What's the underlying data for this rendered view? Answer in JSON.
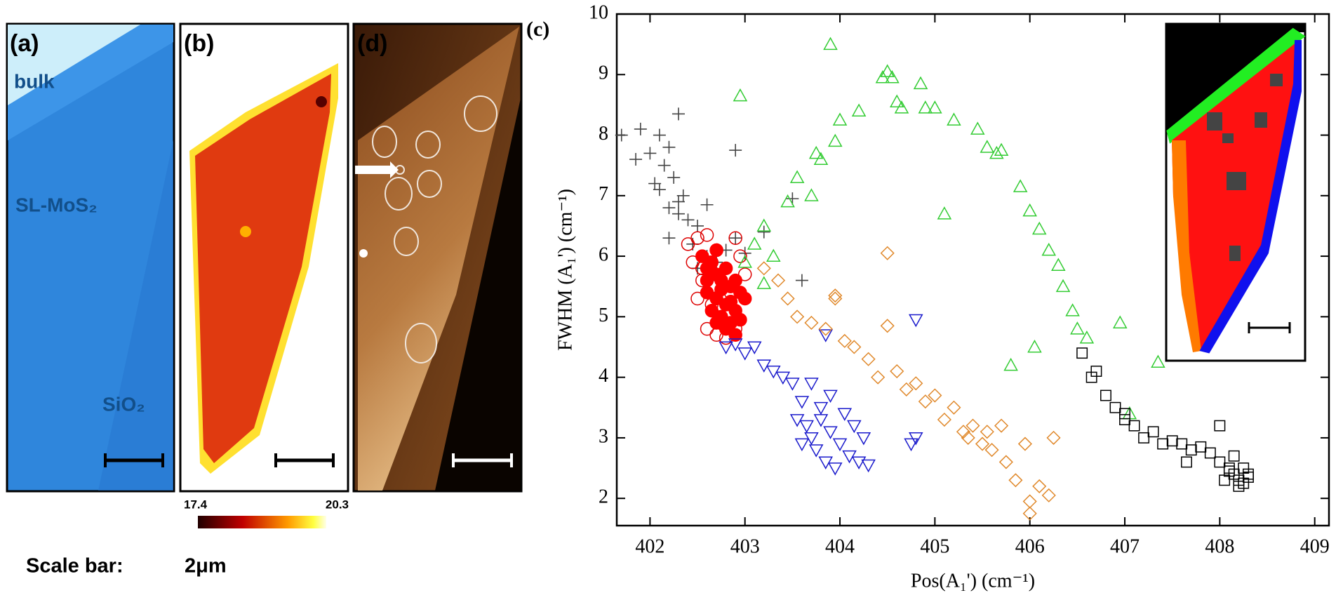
{
  "panels": {
    "a": {
      "label": "(a)",
      "bulk": "bulk",
      "monolayer": "SL-MoS₂",
      "substrate": "SiO₂"
    },
    "b": {
      "label": "(b)"
    },
    "colorbar": {
      "min": "17.4",
      "max": "20.3"
    },
    "d": {
      "label": "(d)"
    },
    "c": {
      "label": "(c)"
    },
    "scale_bar": {
      "label": "Scale bar:",
      "length": "2μm"
    }
  },
  "chart_data": {
    "type": "scatter",
    "x_label": "Pos(A₁') (cm⁻¹)",
    "y_label": "FWHM (A₁') (cm⁻¹)",
    "xlim": [
      401.65,
      409.15
    ],
    "ylim": [
      1.55,
      10
    ],
    "xticks": [
      402,
      403,
      404,
      405,
      406,
      407,
      408,
      409
    ],
    "yticks": [
      2,
      3,
      4,
      5,
      6,
      7,
      8,
      9,
      10
    ],
    "series": [
      {
        "color": "#444444",
        "marker": "plus",
        "x": [
          401.7,
          401.85,
          401.9,
          402.0,
          402.05,
          402.1,
          402.15,
          402.2,
          402.25,
          402.3,
          402.35,
          402.1,
          402.2,
          402.3,
          402.4,
          402.5,
          402.2,
          402.3,
          402.45,
          402.6,
          402.7,
          402.8,
          402.9,
          403.0,
          403.2,
          403.5,
          403.6,
          402.9,
          402.6,
          402.5
        ],
        "values": [
          8.0,
          7.6,
          8.1,
          7.7,
          7.2,
          8.0,
          7.5,
          7.8,
          7.3,
          8.35,
          7.0,
          7.1,
          6.8,
          6.9,
          6.6,
          6.5,
          6.3,
          6.7,
          6.2,
          6.0,
          5.9,
          6.1,
          6.3,
          6.05,
          6.4,
          6.95,
          5.6,
          7.75,
          6.85,
          5.8
        ]
      },
      {
        "color": "#dd0000",
        "marker": "circle",
        "x": [
          402.4,
          402.45,
          402.5,
          402.55,
          402.6,
          402.65,
          402.7,
          402.75,
          402.8,
          402.85,
          402.9,
          402.95,
          403.0,
          402.5,
          402.6,
          402.7,
          402.8,
          402.9,
          402.55,
          402.65
        ],
        "values": [
          6.2,
          5.9,
          6.3,
          5.6,
          6.35,
          5.2,
          6.1,
          5.0,
          4.9,
          5.4,
          6.3,
          6.0,
          5.7,
          5.3,
          4.8,
          4.7,
          4.65,
          4.8,
          5.8,
          5.5
        ]
      },
      {
        "color": "#ff0000",
        "marker": "filled-circle",
        "x": [
          402.55,
          402.6,
          402.65,
          402.7,
          402.75,
          402.8,
          402.85,
          402.9,
          402.95,
          402.6,
          402.7,
          402.8,
          402.9,
          403.0,
          402.65,
          402.75,
          402.85,
          402.95,
          402.7,
          402.8,
          402.9,
          402.75,
          402.85,
          402.6,
          402.7
        ],
        "values": [
          6.0,
          5.8,
          5.9,
          5.7,
          5.6,
          5.8,
          5.5,
          5.6,
          5.4,
          5.4,
          5.3,
          5.2,
          5.1,
          5.3,
          5.1,
          5.0,
          4.9,
          4.95,
          4.9,
          4.8,
          4.7,
          5.45,
          5.25,
          5.6,
          6.1
        ]
      },
      {
        "color": "#33cc33",
        "marker": "triangle-up",
        "x": [
          402.95,
          403.1,
          403.2,
          403.3,
          403.45,
          403.55,
          403.7,
          403.75,
          403.8,
          403.9,
          403.95,
          404.0,
          404.2,
          404.45,
          404.5,
          404.55,
          404.6,
          404.65,
          404.85,
          404.9,
          405.0,
          405.2,
          405.45,
          405.55,
          405.65,
          405.7,
          405.9,
          406.0,
          406.1,
          406.2,
          406.3,
          406.35,
          406.45,
          406.5,
          406.6,
          403.0,
          403.2,
          405.1,
          405.8,
          406.05,
          407.35,
          406.95,
          407.05
        ],
        "values": [
          8.65,
          6.2,
          6.5,
          6.0,
          6.9,
          7.3,
          7.0,
          7.7,
          7.6,
          9.5,
          7.9,
          8.25,
          8.4,
          8.95,
          9.05,
          8.95,
          8.55,
          8.45,
          8.85,
          8.45,
          8.45,
          8.25,
          8.1,
          7.8,
          7.7,
          7.75,
          7.15,
          6.75,
          6.45,
          6.1,
          5.85,
          5.5,
          5.1,
          4.8,
          4.65,
          5.9,
          5.55,
          6.7,
          4.2,
          4.5,
          4.25,
          4.9,
          3.4
        ]
      },
      {
        "color": "#1a1acc",
        "marker": "triangle-down",
        "x": [
          402.8,
          402.9,
          403.0,
          403.1,
          403.2,
          403.3,
          403.4,
          403.5,
          403.55,
          403.6,
          403.65,
          403.7,
          403.75,
          403.8,
          403.85,
          403.9,
          403.95,
          404.0,
          404.05,
          404.1,
          404.15,
          404.2,
          404.25,
          404.3,
          403.6,
          403.7,
          403.8,
          403.9,
          404.8,
          404.8,
          404.75,
          403.85
        ],
        "values": [
          4.5,
          4.55,
          4.4,
          4.5,
          4.2,
          4.1,
          4.0,
          3.9,
          3.3,
          3.6,
          3.2,
          3.0,
          2.8,
          3.5,
          2.6,
          3.1,
          2.5,
          2.9,
          3.4,
          2.7,
          3.2,
          2.6,
          3.0,
          2.55,
          2.9,
          3.9,
          3.3,
          3.7,
          4.95,
          3.0,
          2.9,
          4.7
        ]
      },
      {
        "color": "#e0882a",
        "marker": "diamond",
        "x": [
          403.2,
          403.35,
          403.45,
          403.55,
          403.7,
          403.85,
          403.95,
          404.05,
          404.15,
          404.3,
          404.4,
          404.5,
          404.6,
          404.7,
          404.8,
          404.9,
          405.0,
          405.1,
          405.2,
          405.3,
          405.35,
          405.4,
          405.5,
          405.55,
          405.6,
          405.7,
          405.75,
          405.85,
          405.95,
          406.0,
          406.1,
          406.2,
          406.25,
          404.5,
          403.95,
          406.0
        ],
        "values": [
          5.8,
          5.6,
          5.3,
          5.0,
          4.9,
          4.8,
          5.3,
          4.6,
          4.5,
          4.3,
          4.0,
          4.85,
          4.1,
          3.8,
          3.9,
          3.6,
          3.7,
          3.3,
          3.5,
          3.1,
          3.0,
          3.2,
          2.9,
          3.1,
          2.8,
          3.2,
          2.6,
          2.3,
          2.9,
          1.75,
          2.2,
          2.05,
          3.0,
          6.05,
          5.35,
          1.95
        ]
      },
      {
        "color": "#000000",
        "marker": "square",
        "x": [
          406.55,
          406.7,
          406.8,
          406.9,
          407.0,
          407.1,
          407.2,
          407.3,
          407.4,
          407.5,
          407.6,
          407.7,
          407.8,
          407.9,
          408.0,
          408.1,
          408.15,
          408.2,
          408.25,
          408.3,
          408.2,
          408.25,
          408.15,
          408.3,
          408.05,
          407.65,
          408.1,
          406.65,
          407.0,
          408.0
        ],
        "values": [
          4.4,
          4.1,
          3.7,
          3.5,
          3.4,
          3.2,
          3.0,
          3.1,
          2.9,
          2.95,
          2.9,
          2.8,
          2.85,
          2.75,
          2.6,
          2.5,
          2.4,
          2.3,
          2.25,
          2.35,
          2.2,
          2.5,
          2.7,
          2.4,
          2.3,
          2.6,
          2.45,
          4.0,
          3.3,
          3.2
        ]
      }
    ]
  }
}
